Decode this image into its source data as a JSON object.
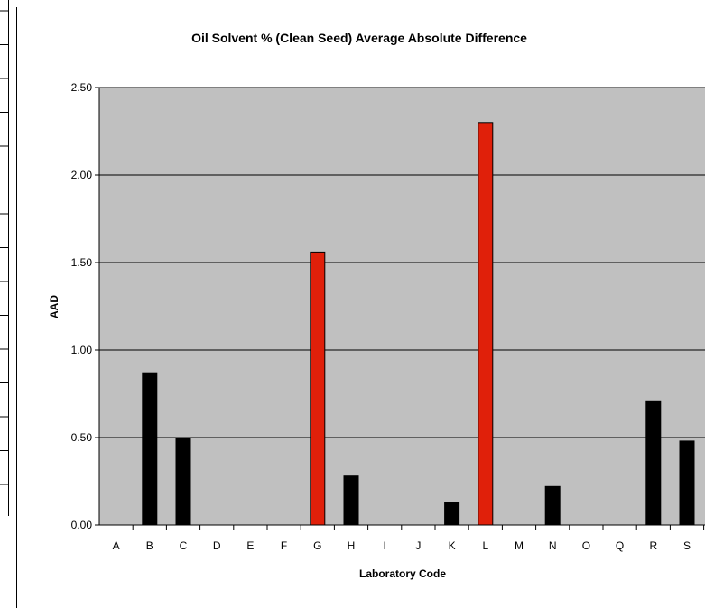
{
  "chart_data": {
    "type": "bar",
    "title": "Oil Solvent % (Clean Seed) Average Absolute Difference",
    "xlabel": "Laboratory Code",
    "ylabel": "AAD",
    "ylim": [
      0,
      2.5
    ],
    "yticks": [
      "0.00",
      "0.50",
      "1.00",
      "1.50",
      "2.00",
      "2.50"
    ],
    "grid": true,
    "categories": [
      "A",
      "B",
      "C",
      "D",
      "E",
      "F",
      "G",
      "H",
      "I",
      "J",
      "K",
      "L",
      "M",
      "N",
      "O",
      "Q",
      "R",
      "S"
    ],
    "values": [
      0,
      0.87,
      0.5,
      0,
      0,
      0,
      1.56,
      0.28,
      0,
      0,
      0.13,
      2.3,
      0,
      0.22,
      0,
      0,
      0.71,
      0.48
    ],
    "highlighted": [
      "G",
      "L"
    ],
    "colors": {
      "bar": "#000000",
      "highlight": "#e0200a",
      "plot_background": "#c0c0c0",
      "gridline": "#000000"
    }
  }
}
